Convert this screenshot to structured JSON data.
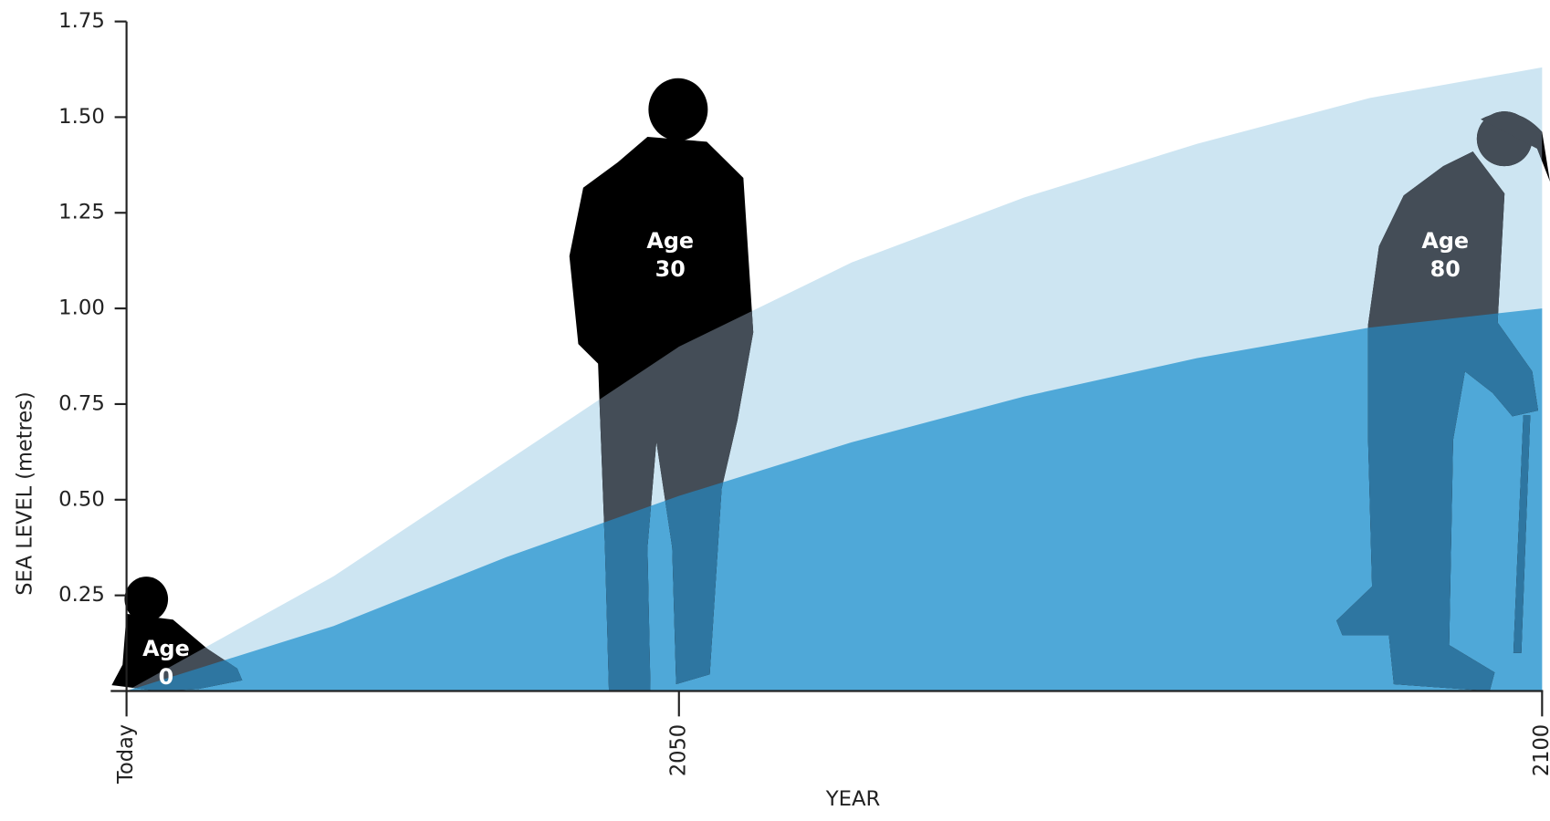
{
  "chart_data": {
    "type": "area",
    "xlabel": "YEAR",
    "ylabel": "SEA LEVEL (metres)",
    "x": [
      2018,
      2030,
      2040,
      2050,
      2060,
      2070,
      2080,
      2090,
      2100
    ],
    "series": [
      {
        "color": "#cde5f2",
        "values": [
          0,
          0.3,
          0.6,
          0.9,
          1.12,
          1.29,
          1.43,
          1.55,
          1.63
        ]
      },
      {
        "color": "#4fa8d8",
        "values": [
          0,
          0.17,
          0.35,
          0.51,
          0.65,
          0.77,
          0.87,
          0.95,
          1.0
        ]
      }
    ],
    "xlim": [
      2018,
      2100
    ],
    "xticks": [
      {
        "value": 2018,
        "label": "Today"
      },
      2050,
      2100
    ],
    "ylim": [
      0,
      1.75
    ],
    "yticks": [
      0.25,
      {
        "value": 0.5,
        "label": "0.50"
      },
      0.75,
      {
        "value": 1,
        "label": "1.00"
      },
      1.25,
      {
        "value": 1.5,
        "label": "1.50"
      },
      1.75
    ],
    "annotations": [
      [
        "Age",
        "0"
      ],
      [
        "Age",
        "30"
      ],
      [
        "Age",
        "80"
      ]
    ]
  }
}
